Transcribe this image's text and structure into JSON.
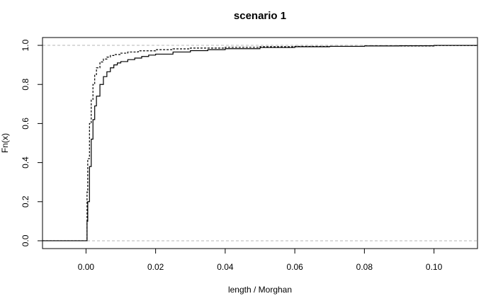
{
  "chart_data": {
    "type": "line",
    "title": "scenario 1",
    "xlabel": "length / Morghan",
    "ylabel": "Fn(x)",
    "xlim": [
      -0.0125,
      0.1125
    ],
    "ylim": [
      -0.04,
      1.04
    ],
    "x_ticks": [
      "0.00",
      "0.02",
      "0.04",
      "0.06",
      "0.08",
      "0.10"
    ],
    "y_ticks": [
      "0.0",
      "0.2",
      "0.4",
      "0.6",
      "0.8",
      "1.0"
    ],
    "reference_lines": [
      0,
      1
    ],
    "grid": false,
    "legend": "none",
    "series": [
      {
        "style": "solid",
        "color": "#000000",
        "x": [
          -0.02,
          0.0,
          0.0003,
          0.0005,
          0.001,
          0.0015,
          0.002,
          0.0025,
          0.003,
          0.004,
          0.005,
          0.006,
          0.007,
          0.008,
          0.009,
          0.01,
          0.012,
          0.014,
          0.016,
          0.018,
          0.02,
          0.025,
          0.03,
          0.035,
          0.04,
          0.05,
          0.06,
          0.07,
          0.08,
          0.09,
          0.1,
          0.12
        ],
        "y": [
          0.0,
          0.0,
          0.1,
          0.2,
          0.38,
          0.52,
          0.62,
          0.69,
          0.74,
          0.8,
          0.84,
          0.865,
          0.885,
          0.9,
          0.91,
          0.917,
          0.927,
          0.935,
          0.943,
          0.95,
          0.955,
          0.966,
          0.973,
          0.978,
          0.983,
          0.989,
          0.993,
          0.995,
          0.997,
          0.998,
          1.0,
          1.0
        ]
      },
      {
        "style": "dashed",
        "color": "#000000",
        "x": [
          -0.02,
          0.0,
          0.0003,
          0.0005,
          0.001,
          0.0015,
          0.002,
          0.0025,
          0.003,
          0.004,
          0.005,
          0.006,
          0.007,
          0.008,
          0.01,
          0.012,
          0.015,
          0.02,
          0.025,
          0.03,
          0.04,
          0.05,
          0.06,
          0.08,
          0.1,
          0.12
        ],
        "y": [
          0.0,
          0.0,
          0.25,
          0.42,
          0.6,
          0.72,
          0.8,
          0.85,
          0.885,
          0.915,
          0.93,
          0.94,
          0.948,
          0.953,
          0.96,
          0.966,
          0.972,
          0.978,
          0.982,
          0.986,
          0.99,
          0.993,
          0.995,
          0.997,
          0.999,
          1.0
        ]
      }
    ]
  }
}
